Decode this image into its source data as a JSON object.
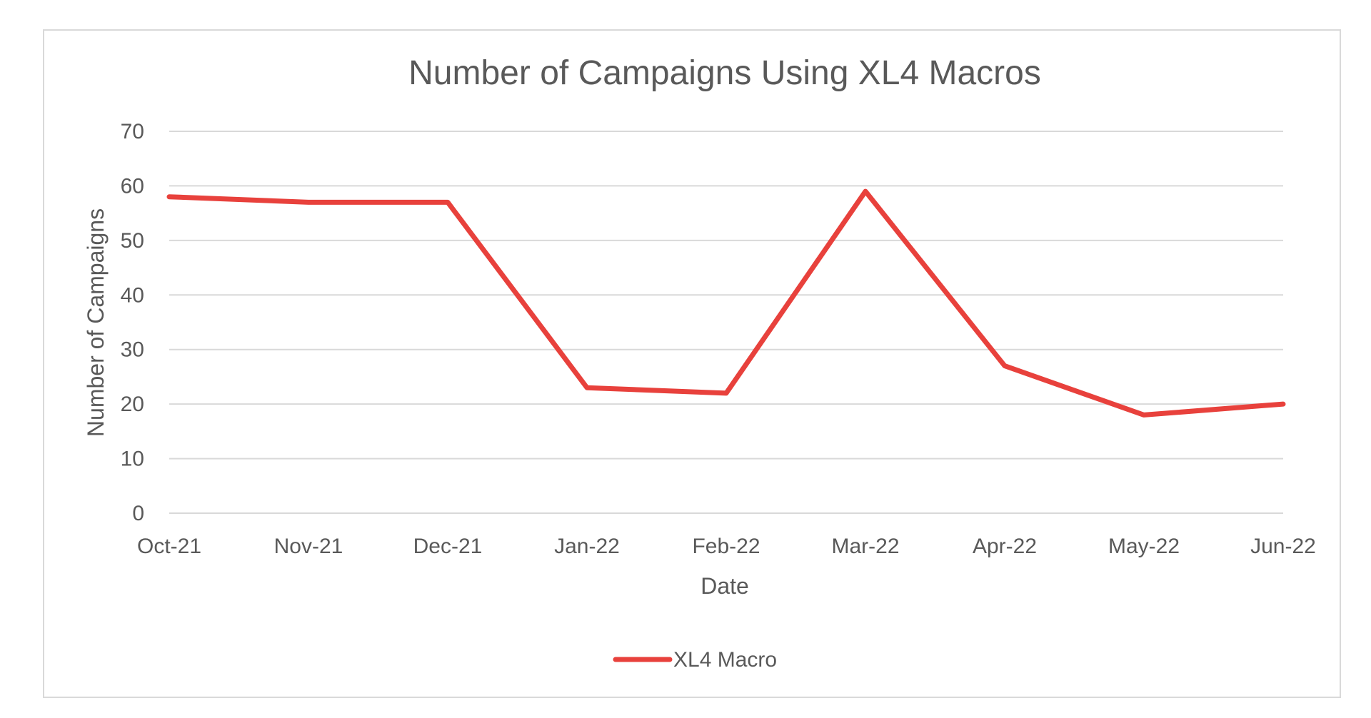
{
  "chart_data": {
    "type": "line",
    "title": "Number of Campaigns Using XL4 Macros",
    "xlabel": "Date",
    "ylabel": "Number of Campaigns",
    "categories": [
      "Oct-21",
      "Nov-21",
      "Dec-21",
      "Jan-22",
      "Feb-22",
      "Mar-22",
      "Apr-22",
      "May-22",
      "Jun-22"
    ],
    "series": [
      {
        "name": "XL4 Macro",
        "values": [
          58,
          57,
          57,
          23,
          22,
          59,
          27,
          18,
          20
        ],
        "color": "#e8413c"
      }
    ],
    "ylim": [
      0,
      70
    ],
    "yticks": [
      0,
      10,
      20,
      30,
      40,
      50,
      60,
      70
    ],
    "grid": true,
    "legend": "bottom"
  }
}
